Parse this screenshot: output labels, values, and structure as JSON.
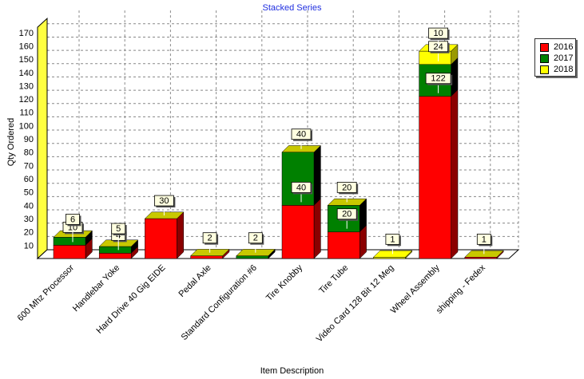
{
  "chart_data": {
    "type": "bar",
    "stacked": true,
    "title": "Stacked Series",
    "xlabel": "Item Description",
    "ylabel": "Qty Ordered",
    "ylim": [
      0,
      180
    ],
    "yticks": [
      10,
      20,
      30,
      40,
      50,
      60,
      70,
      80,
      90,
      100,
      110,
      120,
      130,
      140,
      150,
      160,
      170
    ],
    "grid": true,
    "legend_position": "right",
    "categories": [
      "600 Mhz Processor",
      "Handlebar Yoke",
      "Hard Drive 40 Gig EIDE",
      "Pedal Axle",
      "Standard Configuration #6",
      "Tire Knobby",
      "Tire Tube",
      "Video Card 128 Bit 12 Meg",
      "Wheel Assembly",
      "shipping - Fedex"
    ],
    "series": [
      {
        "name": "2016",
        "color": "#ff0000",
        "values": [
          10,
          4,
          30,
          2,
          0,
          40,
          20,
          0,
          122,
          1
        ]
      },
      {
        "name": "2017",
        "color": "#008000",
        "values": [
          6,
          5,
          0,
          0,
          2,
          40,
          20,
          0,
          24,
          0
        ]
      },
      {
        "name": "2018",
        "color": "#ffff00",
        "values": [
          0,
          0,
          0,
          0,
          0,
          0,
          0,
          1,
          10,
          0
        ]
      }
    ],
    "data_labels": [
      [
        {
          "text": "10",
          "value": 10,
          "stacked_to": 10
        },
        {
          "text": "6",
          "value": 6,
          "stacked_to": 16
        }
      ],
      [
        {
          "text": "4",
          "value": 4,
          "stacked_to": 4
        },
        {
          "text": "5",
          "value": 5,
          "stacked_to": 9
        }
      ],
      [
        {
          "text": "30",
          "value": 30,
          "stacked_to": 30
        }
      ],
      [
        {
          "text": "2",
          "value": 2,
          "stacked_to": 2
        }
      ],
      [
        {
          "text": "2",
          "value": 2,
          "stacked_to": 2
        }
      ],
      [
        {
          "text": "40",
          "value": 40,
          "stacked_to": 40
        },
        {
          "text": "40",
          "value": 40,
          "stacked_to": 80
        }
      ],
      [
        {
          "text": "20",
          "value": 20,
          "stacked_to": 20
        },
        {
          "text": "20",
          "value": 20,
          "stacked_to": 40
        }
      ],
      [
        {
          "text": "1",
          "value": 1,
          "stacked_to": 1
        }
      ],
      [
        {
          "text": "122",
          "value": 122,
          "stacked_to": 122
        },
        {
          "text": "24",
          "value": 24,
          "stacked_to": 146
        },
        {
          "text": "10",
          "value": 10,
          "stacked_to": 156
        }
      ],
      [
        {
          "text": "1",
          "value": 1,
          "stacked_to": 1
        }
      ]
    ]
  }
}
